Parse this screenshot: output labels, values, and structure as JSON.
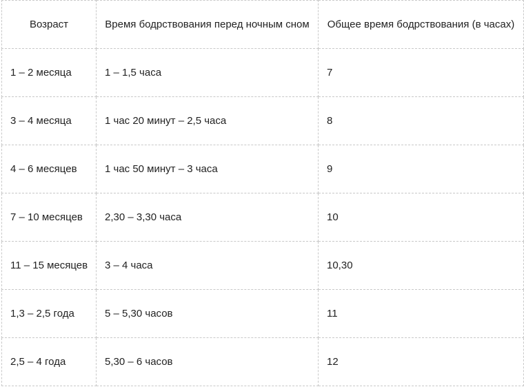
{
  "table": {
    "header": [
      "Возраст",
      "Время бодрствования перед ночным сном",
      "Общее время бодрствования (в часах)"
    ],
    "rows": [
      [
        "1 – 2 месяца",
        "1 – 1,5 часа",
        "7"
      ],
      [
        "3 – 4 месяца",
        "1 час 20 минут – 2,5 часа",
        "8"
      ],
      [
        "4 – 6 месяцев",
        "1 час 50 минут – 3 часа",
        "9"
      ],
      [
        "7 – 10 месяцев",
        "2,30 – 3,30 часа",
        "10"
      ],
      [
        "11 – 15 месяцев",
        "3 – 4 часа",
        "10,30"
      ],
      [
        "1,3 – 2,5 года",
        "5 – 5,30 часов",
        "11"
      ],
      [
        "2,5 – 4 года",
        "5,30 – 6 часов",
        "12"
      ]
    ]
  }
}
